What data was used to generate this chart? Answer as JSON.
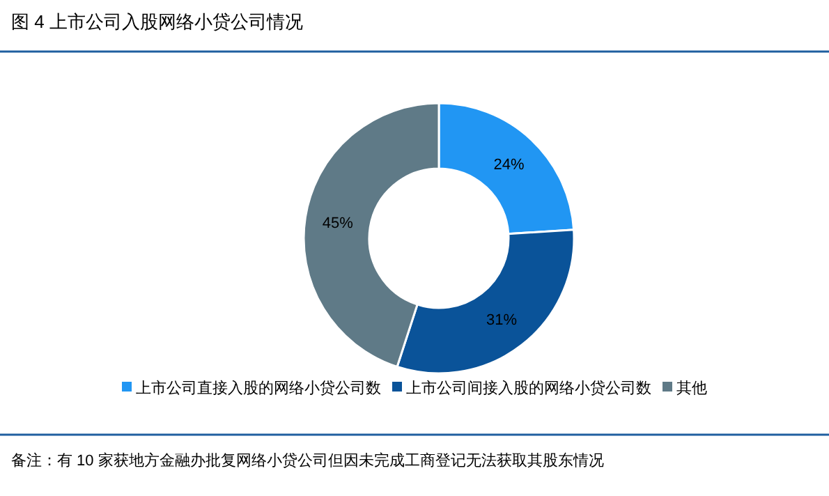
{
  "chart_data": {
    "type": "donut",
    "title": "图 4  上市公司入股网络小贷公司情况",
    "categories": [
      "上市公司直接入股的网络小贷公司数",
      "上市公司间接入股的网络小贷公司数",
      "其他"
    ],
    "values": [
      24,
      31,
      45
    ],
    "colors": [
      "#2196f3",
      "#0a5399",
      "#5f7a87"
    ],
    "value_labels": [
      "24%",
      "31%",
      "45%"
    ],
    "legend": "bottom",
    "annotations": [
      "备注：有 10 家获地方金融办批复网络小贷公司但因未完成工商登记无法获取其股东情况"
    ]
  }
}
